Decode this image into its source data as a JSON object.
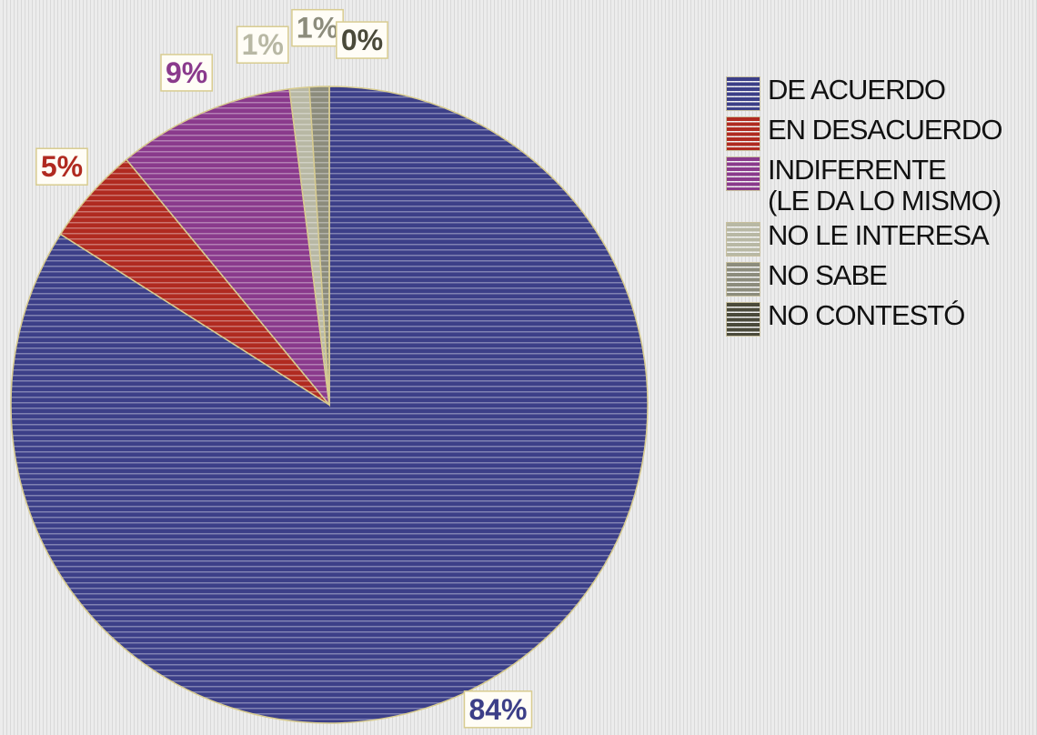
{
  "chart_data": {
    "type": "pie",
    "categories": [
      "DE ACUERDO",
      "EN DESACUERDO",
      "INDIFERENTE\n(LE DA LO MISMO)",
      "NO LE INTERESA",
      "NO SABE",
      "NO CONTESTÓ"
    ],
    "values": [
      84,
      5,
      9,
      1,
      1,
      0
    ],
    "value_labels": [
      "84%",
      "5%",
      "9%",
      "1%",
      "1%",
      "0%"
    ],
    "colors": [
      "#3c3f88",
      "#b02a20",
      "#8a3a8c",
      "#b8b8a4",
      "#8c8c7c",
      "#4a4a3a"
    ],
    "legend": "right"
  }
}
